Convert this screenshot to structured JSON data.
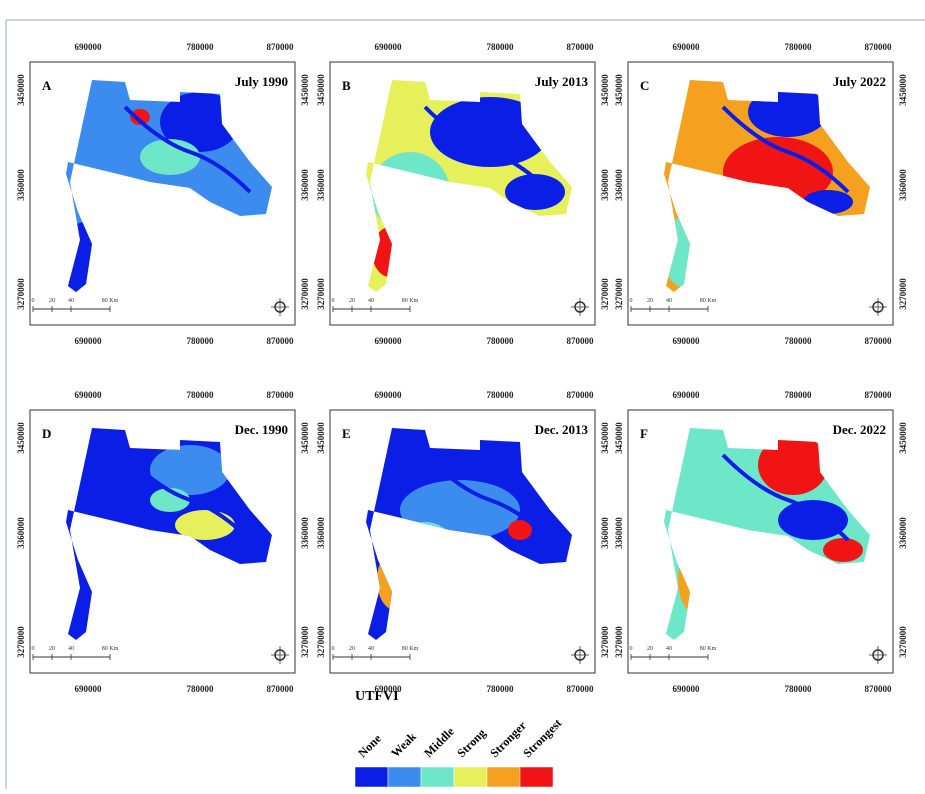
{
  "panels": [
    {
      "letter": "A",
      "title": "July 1990"
    },
    {
      "letter": "B",
      "title": "July 2013"
    },
    {
      "letter": "C",
      "title": "July 2022"
    },
    {
      "letter": "D",
      "title": "Dec. 1990"
    },
    {
      "letter": "E",
      "title": "Dec. 2013"
    },
    {
      "letter": "F",
      "title": "Dec. 2022"
    }
  ],
  "x_ticks": [
    "690000",
    "780000",
    "870000"
  ],
  "y_ticks": [
    "3450000",
    "3360000",
    "3270000"
  ],
  "scale_bar": [
    "0",
    "20",
    "40",
    "80 Km"
  ],
  "legend": {
    "title": "UTFVI",
    "classes": [
      {
        "name": "None",
        "color": "#0a1ee6"
      },
      {
        "name": "Weak",
        "color": "#3c8cf0"
      },
      {
        "name": "Middle",
        "color": "#6ee6c8"
      },
      {
        "name": "Strong",
        "color": "#e6f05a"
      },
      {
        "name": "Stronger",
        "color": "#f5a01e"
      },
      {
        "name": "Strongest",
        "color": "#f01414"
      }
    ]
  }
}
